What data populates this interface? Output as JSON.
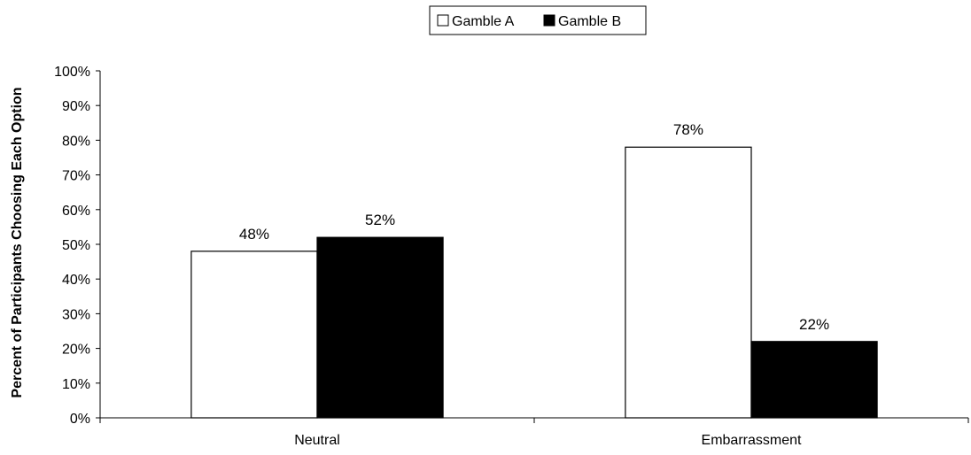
{
  "chart_data": {
    "type": "bar",
    "categories": [
      "Neutral",
      "Embarrassment"
    ],
    "series": [
      {
        "name": "Gamble A",
        "values": [
          48,
          78
        ],
        "labels": [
          "48%",
          "78%"
        ],
        "color": "#ffffff"
      },
      {
        "name": "Gamble B",
        "values": [
          52,
          22
        ],
        "labels": [
          "52%",
          "22%"
        ],
        "color": "#000000"
      }
    ],
    "ylabel": "Percent of Participants Choosing Each Option",
    "xlabel": "",
    "ylim": [
      0,
      100
    ],
    "yticks": [
      "0%",
      "10%",
      "20%",
      "30%",
      "40%",
      "50%",
      "60%",
      "70%",
      "80%",
      "90%",
      "100%"
    ],
    "grid": false,
    "legend_position": "top-center"
  }
}
